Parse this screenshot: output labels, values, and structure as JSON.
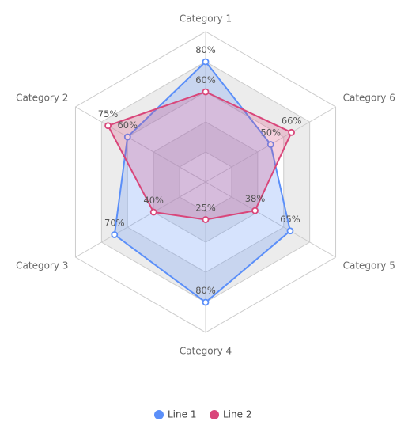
{
  "chart_data": {
    "type": "radar",
    "categories": [
      "Category 1",
      "Category 2",
      "Category 3",
      "Category 4",
      "Category 5",
      "Category 6"
    ],
    "series": [
      {
        "name": "Line 1",
        "values": [
          80,
          60,
          70,
          80,
          65,
          50
        ],
        "labels": [
          "80%",
          "60%",
          "70%",
          "80%",
          "65%",
          "50%"
        ],
        "color": "#5b8ff9",
        "fill": "rgba(91,143,249,0.25)"
      },
      {
        "name": "Line 2",
        "values": [
          60,
          75,
          40,
          25,
          38,
          66
        ],
        "labels": [
          "60%",
          "75%",
          "40%",
          "25%",
          "38%",
          "66%"
        ],
        "color": "#d9467a",
        "fill": "rgba(217,70,122,0.25)"
      }
    ],
    "rlim": [
      0,
      100
    ],
    "grid_levels": 5,
    "grid": true,
    "legend_position": "bottom-center"
  }
}
